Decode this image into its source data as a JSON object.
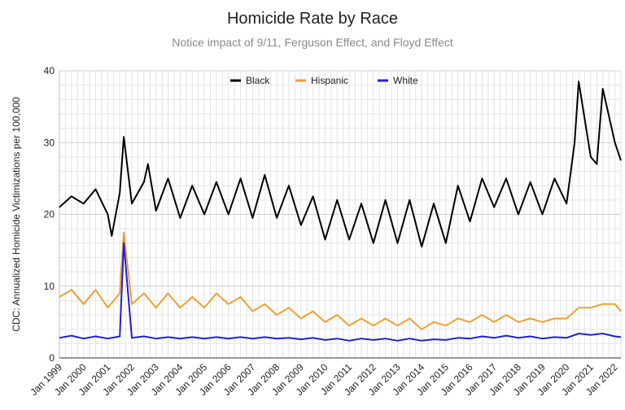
{
  "chart_data": {
    "type": "line",
    "title": "Homicide Rate by Race",
    "subtitle": "Notice impact of 9/11, Ferguson Effect, and Floyd Effect",
    "ylabel": "CDC: Annualized Homicide Victimizations per 100,000",
    "xlabel": "",
    "ylim": [
      0,
      40
    ],
    "yticks": [
      "0",
      "10",
      "20",
      "30",
      "40"
    ],
    "x_ticks": [
      "Jan 1999",
      "Jan 2000",
      "Jan 2001",
      "Jan 2002",
      "Jan 2003",
      "Jan 2004",
      "Jan 2005",
      "Jan 2006",
      "Jan 2007",
      "Jan 2008",
      "Jan 2009",
      "Jan 2010",
      "Jan 2011",
      "Jan 2012",
      "Jan 2013",
      "Jan 2014",
      "Jan 2015",
      "Jan 2016",
      "Jan 2017",
      "Jan 2018",
      "Jan 2019",
      "Jan 2020",
      "Jan 2021",
      "Jan 2022"
    ],
    "x_range": [
      "Jan 1999",
      "Apr 2022"
    ],
    "grid": true,
    "legend_position": "top-center",
    "series": [
      {
        "name": "Black",
        "color": "#000000",
        "points": [
          [
            "Jan 1999",
            21.0
          ],
          [
            "Jul 1999",
            22.5
          ],
          [
            "Jan 2000",
            21.5
          ],
          [
            "Jul 2000",
            23.5
          ],
          [
            "Jan 2001",
            20.0
          ],
          [
            "Mar 2001",
            17.0
          ],
          [
            "Jul 2001",
            23.0
          ],
          [
            "Sep 2001",
            30.8
          ],
          [
            "Jan 2002",
            21.5
          ],
          [
            "Jul 2002",
            24.5
          ],
          [
            "Sep 2002",
            27.0
          ],
          [
            "Jan 2003",
            20.5
          ],
          [
            "Jul 2003",
            25.0
          ],
          [
            "Jan 2004",
            19.5
          ],
          [
            "Jul 2004",
            24.0
          ],
          [
            "Jan 2005",
            20.0
          ],
          [
            "Jul 2005",
            24.5
          ],
          [
            "Jan 2006",
            20.0
          ],
          [
            "Jul 2006",
            25.0
          ],
          [
            "Jan 2007",
            19.5
          ],
          [
            "Jul 2007",
            25.5
          ],
          [
            "Jan 2008",
            19.5
          ],
          [
            "Jul 2008",
            24.0
          ],
          [
            "Jan 2009",
            18.5
          ],
          [
            "Jul 2009",
            22.5
          ],
          [
            "Jan 2010",
            16.5
          ],
          [
            "Jul 2010",
            22.0
          ],
          [
            "Jan 2011",
            16.5
          ],
          [
            "Jul 2011",
            21.5
          ],
          [
            "Jan 2012",
            16.0
          ],
          [
            "Jul 2012",
            22.0
          ],
          [
            "Jan 2013",
            16.0
          ],
          [
            "Jul 2013",
            22.0
          ],
          [
            "Jan 2014",
            15.5
          ],
          [
            "Jul 2014",
            21.5
          ],
          [
            "Jan 2015",
            16.0
          ],
          [
            "Jul 2015",
            24.0
          ],
          [
            "Jan 2016",
            19.0
          ],
          [
            "Jul 2016",
            25.0
          ],
          [
            "Jan 2017",
            21.0
          ],
          [
            "Jul 2017",
            25.0
          ],
          [
            "Jan 2018",
            20.0
          ],
          [
            "Jul 2018",
            24.5
          ],
          [
            "Jan 2019",
            20.0
          ],
          [
            "Jul 2019",
            25.0
          ],
          [
            "Jan 2020",
            21.5
          ],
          [
            "May 2020",
            30.0
          ],
          [
            "Jul 2020",
            38.5
          ],
          [
            "Jan 2021",
            28.0
          ],
          [
            "Apr 2021",
            27.0
          ],
          [
            "Jul 2021",
            37.5
          ],
          [
            "Jan 2022",
            30.0
          ],
          [
            "Apr 2022",
            27.5
          ]
        ]
      },
      {
        "name": "Hispanic",
        "color": "#f0a030",
        "points": [
          [
            "Jan 1999",
            8.5
          ],
          [
            "Jul 1999",
            9.5
          ],
          [
            "Jan 2000",
            7.5
          ],
          [
            "Jul 2000",
            9.5
          ],
          [
            "Jan 2001",
            7.0
          ],
          [
            "Jul 2001",
            9.0
          ],
          [
            "Sep 2001",
            17.5
          ],
          [
            "Jan 2002",
            7.5
          ],
          [
            "Jul 2002",
            9.0
          ],
          [
            "Jan 2003",
            7.0
          ],
          [
            "Jul 2003",
            9.0
          ],
          [
            "Jan 2004",
            7.0
          ],
          [
            "Jul 2004",
            8.5
          ],
          [
            "Jan 2005",
            7.0
          ],
          [
            "Jul 2005",
            9.0
          ],
          [
            "Jan 2006",
            7.5
          ],
          [
            "Jul 2006",
            8.5
          ],
          [
            "Jan 2007",
            6.5
          ],
          [
            "Jul 2007",
            7.5
          ],
          [
            "Jan 2008",
            6.0
          ],
          [
            "Jul 2008",
            7.0
          ],
          [
            "Jan 2009",
            5.5
          ],
          [
            "Jul 2009",
            6.5
          ],
          [
            "Jan 2010",
            5.0
          ],
          [
            "Jul 2010",
            6.0
          ],
          [
            "Jan 2011",
            4.5
          ],
          [
            "Jul 2011",
            5.5
          ],
          [
            "Jan 2012",
            4.5
          ],
          [
            "Jul 2012",
            5.5
          ],
          [
            "Jan 2013",
            4.5
          ],
          [
            "Jul 2013",
            5.5
          ],
          [
            "Jan 2014",
            4.0
          ],
          [
            "Jul 2014",
            5.0
          ],
          [
            "Jan 2015",
            4.5
          ],
          [
            "Jul 2015",
            5.5
          ],
          [
            "Jan 2016",
            5.0
          ],
          [
            "Jul 2016",
            6.0
          ],
          [
            "Jan 2017",
            5.0
          ],
          [
            "Jul 2017",
            6.0
          ],
          [
            "Jan 2018",
            5.0
          ],
          [
            "Jul 2018",
            5.5
          ],
          [
            "Jan 2019",
            5.0
          ],
          [
            "Jul 2019",
            5.5
          ],
          [
            "Jan 2020",
            5.5
          ],
          [
            "Jul 2020",
            7.0
          ],
          [
            "Jan 2021",
            7.0
          ],
          [
            "Jul 2021",
            7.5
          ],
          [
            "Jan 2022",
            7.5
          ],
          [
            "Apr 2022",
            6.5
          ]
        ]
      },
      {
        "name": "White",
        "color": "#1f1fdd",
        "points": [
          [
            "Jan 1999",
            2.8
          ],
          [
            "Jul 1999",
            3.1
          ],
          [
            "Jan 2000",
            2.7
          ],
          [
            "Jul 2000",
            3.0
          ],
          [
            "Jan 2001",
            2.7
          ],
          [
            "Jul 2001",
            3.0
          ],
          [
            "Sep 2001",
            16.0
          ],
          [
            "Jan 2002",
            2.8
          ],
          [
            "Jul 2002",
            3.0
          ],
          [
            "Jan 2003",
            2.7
          ],
          [
            "Jul 2003",
            2.9
          ],
          [
            "Jan 2004",
            2.7
          ],
          [
            "Jul 2004",
            2.9
          ],
          [
            "Jan 2005",
            2.7
          ],
          [
            "Jul 2005",
            2.9
          ],
          [
            "Jan 2006",
            2.7
          ],
          [
            "Jul 2006",
            2.9
          ],
          [
            "Jan 2007",
            2.7
          ],
          [
            "Jul 2007",
            2.9
          ],
          [
            "Jan 2008",
            2.7
          ],
          [
            "Jul 2008",
            2.8
          ],
          [
            "Jan 2009",
            2.6
          ],
          [
            "Jul 2009",
            2.8
          ],
          [
            "Jan 2010",
            2.5
          ],
          [
            "Jul 2010",
            2.7
          ],
          [
            "Jan 2011",
            2.4
          ],
          [
            "Jul 2011",
            2.7
          ],
          [
            "Jan 2012",
            2.5
          ],
          [
            "Jul 2012",
            2.7
          ],
          [
            "Jan 2013",
            2.4
          ],
          [
            "Jul 2013",
            2.7
          ],
          [
            "Jan 2014",
            2.4
          ],
          [
            "Jul 2014",
            2.6
          ],
          [
            "Jan 2015",
            2.5
          ],
          [
            "Jul 2015",
            2.8
          ],
          [
            "Jan 2016",
            2.7
          ],
          [
            "Jul 2016",
            3.0
          ],
          [
            "Jan 2017",
            2.8
          ],
          [
            "Jul 2017",
            3.1
          ],
          [
            "Jan 2018",
            2.8
          ],
          [
            "Jul 2018",
            3.0
          ],
          [
            "Jan 2019",
            2.7
          ],
          [
            "Jul 2019",
            2.9
          ],
          [
            "Jan 2020",
            2.8
          ],
          [
            "Jul 2020",
            3.4
          ],
          [
            "Jan 2021",
            3.2
          ],
          [
            "Jul 2021",
            3.4
          ],
          [
            "Jan 2022",
            3.0
          ],
          [
            "Apr 2022",
            2.9
          ]
        ]
      }
    ]
  }
}
